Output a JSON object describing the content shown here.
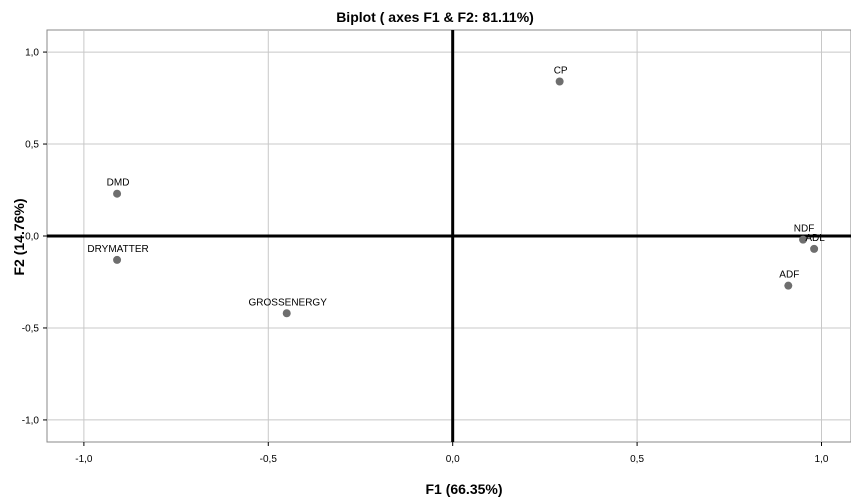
{
  "chart_data": {
    "type": "scatter",
    "title": "Biplot ( axes F1 & F2: 81.11%)",
    "xlabel": "F1 (66.35%)",
    "ylabel": "F2 (14.76%)",
    "xlim": [
      -1.1,
      1.08
    ],
    "ylim": [
      -1.12,
      1.12
    ],
    "x_ticks": [
      -1.0,
      -0.5,
      0.0,
      0.5,
      1.0
    ],
    "y_ticks": [
      -1.0,
      -0.5,
      0.0,
      0.5,
      1.0
    ],
    "x_tick_labels": [
      "-1,0",
      "-0,5",
      "0,0",
      "0,5",
      "1,0"
    ],
    "y_tick_labels": [
      "-1,0",
      "-0,5",
      "0,0",
      "0,5",
      "1,0"
    ],
    "grid": true,
    "colors": {
      "point": "#6e6e6e",
      "grid": "#c8c8c8",
      "zero_line": "#000000",
      "frame": "#888888"
    },
    "points": [
      {
        "label": "CP",
        "x": 0.29,
        "y": 0.84
      },
      {
        "label": "DMD",
        "x": -0.91,
        "y": 0.23
      },
      {
        "label": "DRYMATTER",
        "x": -0.91,
        "y": -0.13
      },
      {
        "label": "GROSSENERGY",
        "x": -0.45,
        "y": -0.42
      },
      {
        "label": "NDF",
        "x": 0.95,
        "y": -0.02
      },
      {
        "label": "ADL",
        "x": 0.98,
        "y": -0.07
      },
      {
        "label": "ADF",
        "x": 0.91,
        "y": -0.27
      }
    ]
  }
}
